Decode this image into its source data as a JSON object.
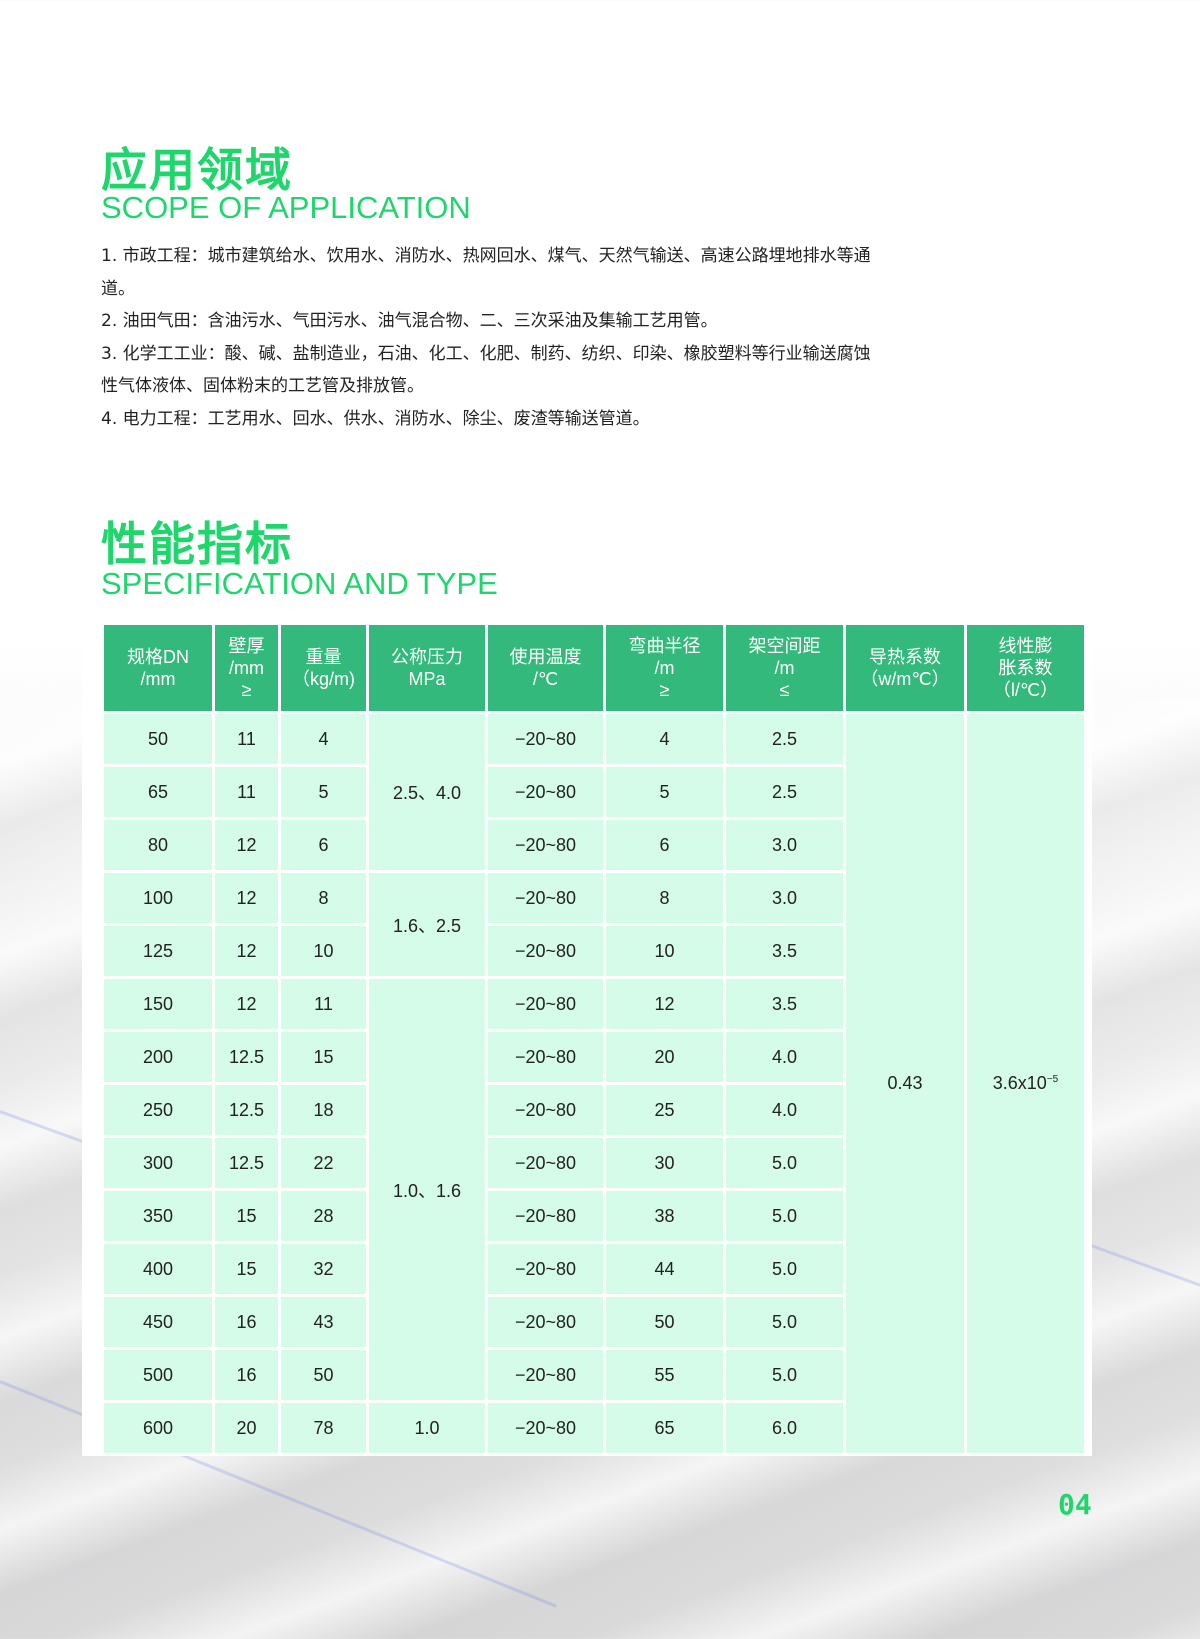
{
  "scope": {
    "title_cn": "应用领域",
    "title_en": "SCOPE OF APPLICATION",
    "items": [
      "1. 市政工程：城市建筑给水、饮用水、消防水、热网回水、煤气、天然气输送、高速公路埋地排水等通道。",
      "2. 油田气田：含油污水、气田污水、油气混合物、二、三次采油及集输工艺用管。",
      "3. 化学工工业：酸、碱、盐制造业，石油、化工、化肥、制药、纺织、印染、橡胶塑料等行业输送腐蚀性气体液体、固体粉末的工艺管及排放管。",
      "4. 电力工程：工艺用水、回水、供水、消防水、除尘、废渣等输送管道。"
    ]
  },
  "spec": {
    "title_cn": "性能指标",
    "title_en": "SPECIFICATION AND TYPE",
    "headers": [
      [
        "规格DN",
        "/mm"
      ],
      [
        "壁厚",
        "/mm",
        "≥"
      ],
      [
        "重量",
        "（kg/m)"
      ],
      [
        "公称压力",
        "MPa"
      ],
      [
        "使用温度",
        "/℃"
      ],
      [
        "弯曲半径",
        "/m",
        "≥"
      ],
      [
        "架空间距",
        "/m",
        "≤"
      ],
      [
        "导热系数",
        "（w/m℃）"
      ],
      [
        "线性膨",
        "胀系数",
        "（l/℃）"
      ]
    ],
    "rows": [
      {
        "dn": "50",
        "wall": "11",
        "weight": "4",
        "temp": "−20~80",
        "bend": "4",
        "span": "2.5"
      },
      {
        "dn": "65",
        "wall": "11",
        "weight": "5",
        "temp": "−20~80",
        "bend": "5",
        "span": "2.5"
      },
      {
        "dn": "80",
        "wall": "12",
        "weight": "6",
        "temp": "−20~80",
        "bend": "6",
        "span": "3.0"
      },
      {
        "dn": "100",
        "wall": "12",
        "weight": "8",
        "temp": "−20~80",
        "bend": "8",
        "span": "3.0"
      },
      {
        "dn": "125",
        "wall": "12",
        "weight": "10",
        "temp": "−20~80",
        "bend": "10",
        "span": "3.5"
      },
      {
        "dn": "150",
        "wall": "12",
        "weight": "11",
        "temp": "−20~80",
        "bend": "12",
        "span": "3.5"
      },
      {
        "dn": "200",
        "wall": "12.5",
        "weight": "15",
        "temp": "−20~80",
        "bend": "20",
        "span": "4.0"
      },
      {
        "dn": "250",
        "wall": "12.5",
        "weight": "18",
        "temp": "−20~80",
        "bend": "25",
        "span": "4.0"
      },
      {
        "dn": "300",
        "wall": "12.5",
        "weight": "22",
        "temp": "−20~80",
        "bend": "30",
        "span": "5.0"
      },
      {
        "dn": "350",
        "wall": "15",
        "weight": "28",
        "temp": "−20~80",
        "bend": "38",
        "span": "5.0"
      },
      {
        "dn": "400",
        "wall": "15",
        "weight": "32",
        "temp": "−20~80",
        "bend": "44",
        "span": "5.0"
      },
      {
        "dn": "450",
        "wall": "16",
        "weight": "43",
        "temp": "−20~80",
        "bend": "50",
        "span": "5.0"
      },
      {
        "dn": "500",
        "wall": "16",
        "weight": "50",
        "temp": "−20~80",
        "bend": "55",
        "span": "5.0"
      },
      {
        "dn": "600",
        "wall": "20",
        "weight": "78",
        "temp": "−20~80",
        "bend": "65",
        "span": "6.0"
      }
    ],
    "pressure_groups": [
      {
        "value": "2.5、4.0",
        "rows": 3
      },
      {
        "value": "1.6、2.5",
        "rows": 2
      },
      {
        "value": "1.0、1.6",
        "rows": 8
      },
      {
        "value": "1.0",
        "rows": 1
      }
    ],
    "thermal_conductivity": "0.43",
    "expansion_base": "3.6x10",
    "expansion_exp": "−5"
  },
  "page_number": "04",
  "colors": {
    "accent": "#1fd66c",
    "header_bg": "#34b97c",
    "cell_bg": "#d4fce8"
  }
}
